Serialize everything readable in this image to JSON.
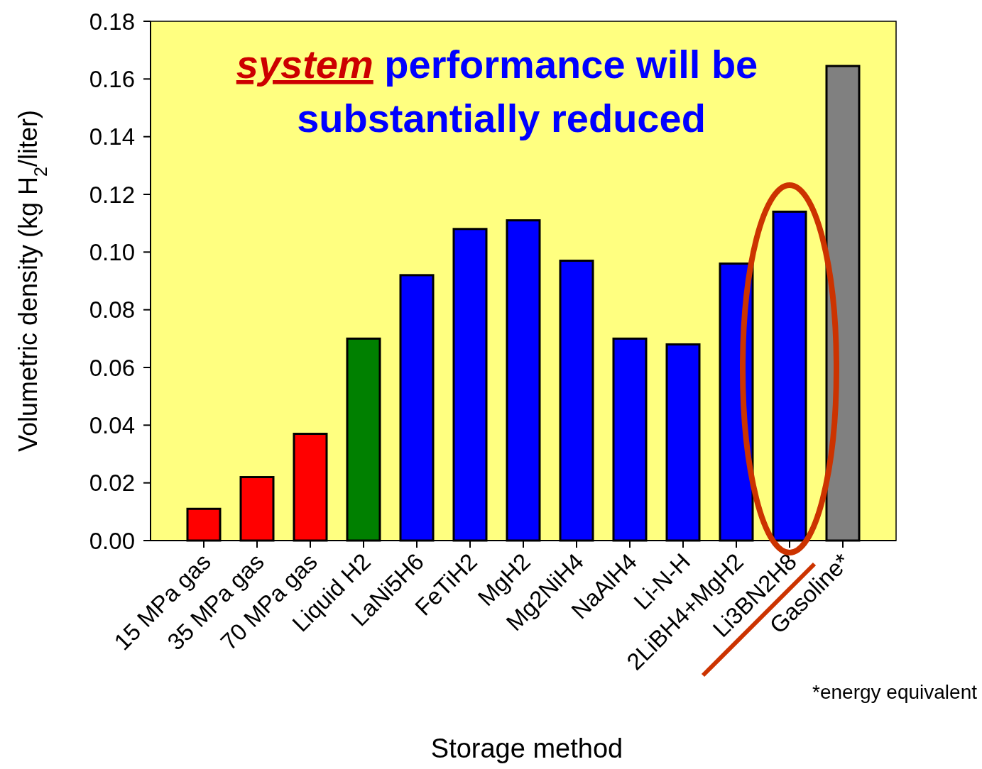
{
  "chart_data": {
    "type": "bar",
    "xlabel": "Storage method",
    "ylabel": "Volumetric density (kg H$_{2}$/liter)",
    "categories": [
      "15 MPa gas",
      "35 MPa gas",
      "70 MPa gas",
      "Liquid H2",
      "LaNi5H6",
      "FeTiH2",
      "MgH2",
      "Mg2NiH4",
      "NaAlH4",
      "Li-N-H",
      "2LiBH4+MgH2",
      "Li3BN2H8",
      "Gasoline*"
    ],
    "values": [
      0.011,
      0.022,
      0.037,
      0.07,
      0.092,
      0.108,
      0.111,
      0.097,
      0.07,
      0.068,
      0.096,
      0.114,
      0.1645
    ],
    "colors": [
      "#ff0000",
      "#ff0000",
      "#ff0000",
      "#008000",
      "#0000ff",
      "#0000ff",
      "#0000ff",
      "#0000ff",
      "#0000ff",
      "#0000ff",
      "#0000ff",
      "#0000ff",
      "#808080"
    ],
    "ylim": [
      0,
      0.18
    ],
    "yticks": [
      {
        "value": 0,
        "label": "0.00"
      },
      {
        "value": 0.02,
        "label": "0.02"
      },
      {
        "value": 0.04,
        "label": "0.04"
      },
      {
        "value": 0.06,
        "label": "0.06"
      },
      {
        "value": 0.08,
        "label": "0.08"
      },
      {
        "value": 0.1,
        "label": "0.10"
      },
      {
        "value": 0.12,
        "label": "0.12"
      },
      {
        "value": 0.14,
        "label": "0.14"
      },
      {
        "value": 0.16,
        "label": "0.16"
      },
      {
        "value": 0.18,
        "label": "0.18"
      }
    ],
    "grid": false,
    "annotations": [
      "system performance will be substantially reduced",
      "*energy equivalent"
    ]
  }
}
